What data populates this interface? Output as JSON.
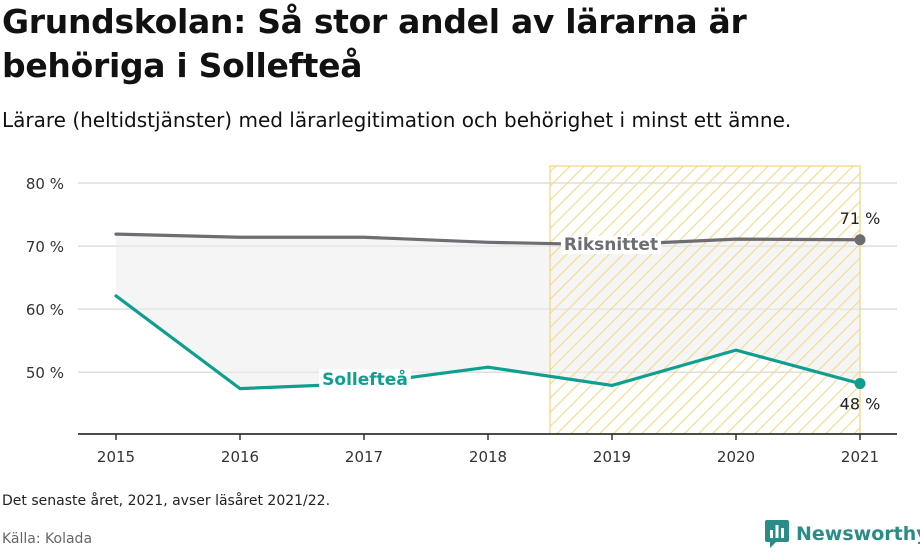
{
  "title": "Grundskolan: Så stor andel av lärarna är behöriga i Sollefteå",
  "subtitle": "Lärare (heltidstjänster) med lärarlegitimation och behörighet i minst ett ämne.",
  "footnote": "Det senaste året, 2021, avser läsåret 2021/22.",
  "source": "Källa: Kolada",
  "brand": "Newsworthy",
  "colors": {
    "riks": "#6e6d72",
    "sollefte": "#0f9e90",
    "highlight_stroke": "#f3d27a",
    "highlight_hatch": "#f5d98a",
    "band_fill": "#ececec",
    "grid": "#dedede",
    "axis": "#333333",
    "brand": "#2a8c86"
  },
  "chart_data": {
    "type": "line",
    "categories": [
      "2015",
      "2016",
      "2017",
      "2018",
      "2019",
      "2020",
      "2021"
    ],
    "x": [
      2015,
      2016,
      2017,
      2018,
      2019,
      2020,
      2021
    ],
    "series": [
      {
        "name": "Riksnittet",
        "key": "riks",
        "values": [
          71.9,
          71.4,
          71.4,
          70.6,
          70.2,
          71.1,
          71.0
        ]
      },
      {
        "name": "Sollefteå",
        "key": "sollefte",
        "values": [
          62.1,
          47.4,
          48.2,
          50.8,
          47.9,
          53.5,
          48.2
        ]
      }
    ],
    "y_ticks": [
      50,
      60,
      70,
      80
    ],
    "y_tick_labels": [
      "50 %",
      "60 %",
      "70 %",
      "80 %"
    ],
    "ylim": [
      40.2,
      82.7
    ],
    "highlight_period": [
      2018.5,
      2021
    ],
    "end_labels": {
      "riks": "71 %",
      "sollefte": "48 %"
    },
    "grid": true,
    "xlabel": "",
    "ylabel": ""
  }
}
